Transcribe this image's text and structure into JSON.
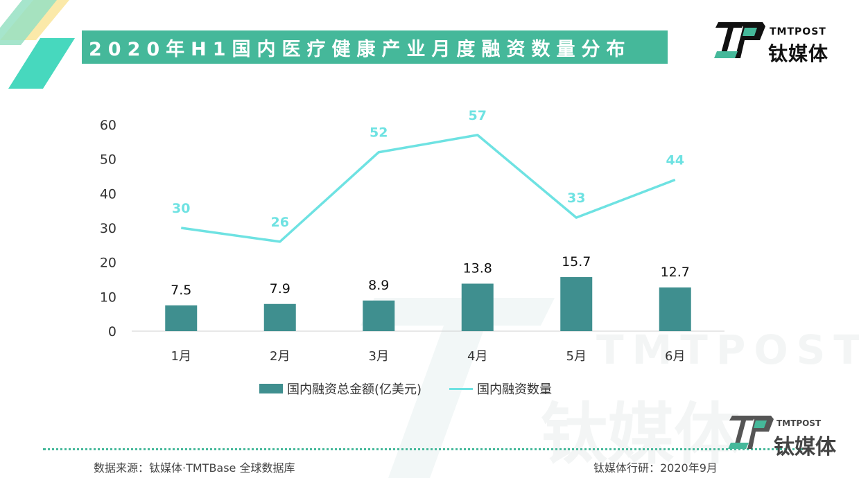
{
  "title": "2020年H1国内医疗健康产业月度融资数量分布",
  "brand": {
    "en": "TMTPOST",
    "cn": "钛媒体"
  },
  "colors": {
    "accent": "#45b89a",
    "bar": "#3f8f8f",
    "line": "#6ee2e2"
  },
  "chart_data": {
    "type": "bar",
    "categories": [
      "1月",
      "2月",
      "3月",
      "4月",
      "5月",
      "6月"
    ],
    "series": [
      {
        "name": "国内融资总金额(亿美元)",
        "type": "bar",
        "values": [
          7.5,
          7.9,
          8.9,
          13.8,
          15.7,
          12.7
        ]
      },
      {
        "name": "国内融资数量",
        "type": "line",
        "values": [
          30,
          26,
          52,
          57,
          33,
          44
        ]
      }
    ],
    "yticks": [
      "0",
      "10",
      "20",
      "30",
      "40",
      "50",
      "60"
    ],
    "ylim": [
      0,
      60
    ],
    "grid": false,
    "legend": "bottom"
  },
  "footer": {
    "source": "数据来源：钛媒体·TMTBase 全球数据库",
    "credit": "钛媒体行研：2020年9月"
  }
}
